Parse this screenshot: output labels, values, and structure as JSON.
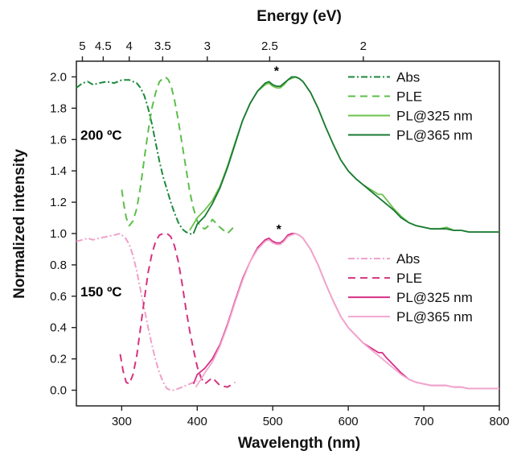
{
  "chart_data": {
    "type": "line",
    "title": "",
    "xlabel": "Wavelength (nm)",
    "ylabel": "Normalized intensity",
    "top_xlabel": "Energy (eV)",
    "xlim": [
      240,
      800
    ],
    "ylim": [
      -0.1,
      2.1
    ],
    "x_ticks": [
      300,
      400,
      500,
      600,
      700,
      800
    ],
    "y_ticks": [
      0.0,
      0.2,
      0.4,
      0.6,
      0.8,
      1.0,
      1.2,
      1.4,
      1.6,
      1.8,
      2.0
    ],
    "top_ticks_ev": [
      5,
      4.5,
      4,
      3.5,
      3,
      2.5,
      2
    ],
    "top_tick_labels": [
      "5",
      "4.5",
      "4",
      "3.5",
      "3",
      "2.5",
      "2"
    ],
    "grid": false,
    "panels": [
      {
        "label": "200 ºC",
        "legend_position": "top-right",
        "peak_marker": {
          "text": "*",
          "x": 505,
          "y": 2.04
        },
        "series": [
          {
            "name": "Abs",
            "style": "dash-dot",
            "color": "#1e8a3c",
            "x": [
              240,
              248,
              255,
              262,
              270,
              280,
              290,
              300,
              310,
              320,
              325,
              330,
              335,
              340,
              345,
              350,
              355,
              360,
              365,
              370,
              375,
              380,
              385,
              390,
              395
            ],
            "y": [
              1.93,
              1.96,
              1.97,
              1.95,
              1.96,
              1.97,
              1.96,
              1.98,
              1.98,
              1.96,
              1.93,
              1.88,
              1.8,
              1.7,
              1.58,
              1.46,
              1.36,
              1.28,
              1.2,
              1.13,
              1.07,
              1.03,
              1.01,
              1.0,
              0.99
            ]
          },
          {
            "name": "PLE",
            "style": "dashed",
            "color": "#5cbf4a",
            "x": [
              300,
              303,
              306,
              310,
              315,
              320,
              325,
              330,
              335,
              340,
              345,
              350,
              355,
              358,
              362,
              366,
              370,
              375,
              380,
              385,
              390,
              395,
              400,
              405,
              410,
              415,
              420,
              430,
              440,
              450
            ],
            "y": [
              1.28,
              1.18,
              1.1,
              1.05,
              1.08,
              1.16,
              1.3,
              1.48,
              1.65,
              1.8,
              1.9,
              1.97,
              1.99,
              2.0,
              1.98,
              1.93,
              1.85,
              1.72,
              1.57,
              1.42,
              1.27,
              1.16,
              1.08,
              1.04,
              1.03,
              1.05,
              1.09,
              1.04,
              1.0,
              1.05
            ]
          },
          {
            "name": "PL@325 nm",
            "style": "solid",
            "color": "#6cc24a",
            "x": [
              390,
              400,
              410,
              420,
              430,
              440,
              450,
              460,
              470,
              480,
              490,
              495,
              500,
              505,
              510,
              515,
              520,
              525,
              530,
              535,
              540,
              550,
              560,
              570,
              580,
              590,
              600,
              610,
              620,
              630,
              640,
              645,
              650,
              660,
              670,
              680,
              690,
              700,
              710,
              720,
              730,
              740,
              750,
              760,
              770,
              780,
              790,
              800
            ],
            "y": [
              1.02,
              1.1,
              1.15,
              1.21,
              1.3,
              1.43,
              1.58,
              1.72,
              1.83,
              1.91,
              1.95,
              1.96,
              1.94,
              1.93,
              1.93,
              1.95,
              1.98,
              1.99,
              2.0,
              1.99,
              1.97,
              1.9,
              1.8,
              1.68,
              1.57,
              1.47,
              1.4,
              1.35,
              1.31,
              1.28,
              1.25,
              1.25,
              1.22,
              1.16,
              1.11,
              1.07,
              1.05,
              1.04,
              1.03,
              1.03,
              1.04,
              1.02,
              1.02,
              1.01,
              1.01,
              1.01,
              1.01,
              1.01
            ]
          },
          {
            "name": "PL@365 nm",
            "style": "solid",
            "color": "#1b7a35",
            "x": [
              395,
              400,
              410,
              420,
              430,
              440,
              450,
              460,
              470,
              480,
              490,
              495,
              500,
              505,
              510,
              515,
              520,
              525,
              530,
              535,
              540,
              550,
              560,
              570,
              580,
              590,
              600,
              610,
              620,
              630,
              640,
              650,
              660,
              670,
              680,
              690,
              700,
              710,
              720,
              730,
              740,
              750,
              760,
              770,
              780,
              790,
              800
            ],
            "y": [
              1.0,
              1.06,
              1.11,
              1.19,
              1.29,
              1.42,
              1.57,
              1.72,
              1.83,
              1.91,
              1.96,
              1.97,
              1.95,
              1.94,
              1.94,
              1.96,
              1.98,
              2.0,
              2.0,
              1.99,
              1.97,
              1.9,
              1.8,
              1.68,
              1.57,
              1.47,
              1.4,
              1.35,
              1.31,
              1.27,
              1.23,
              1.19,
              1.15,
              1.1,
              1.07,
              1.05,
              1.04,
              1.03,
              1.03,
              1.03,
              1.02,
              1.02,
              1.01,
              1.01,
              1.01,
              1.01,
              1.01
            ]
          }
        ]
      },
      {
        "label": "150 ºC",
        "legend_position": "right",
        "peak_marker": {
          "text": "*",
          "x": 508,
          "y": 1.03
        },
        "series": [
          {
            "name": "Abs",
            "style": "dash-dot",
            "color": "#f0a0cb",
            "x": [
              240,
              248,
              255,
              262,
              270,
              280,
              290,
              298,
              305,
              310,
              315,
              320,
              325,
              330,
              335,
              340,
              345,
              350,
              355,
              360,
              365,
              370,
              375,
              380,
              385,
              390,
              395,
              400
            ],
            "y": [
              0.95,
              0.96,
              0.97,
              0.96,
              0.97,
              0.98,
              0.99,
              1.0,
              0.97,
              0.93,
              0.86,
              0.76,
              0.64,
              0.52,
              0.4,
              0.29,
              0.19,
              0.11,
              0.05,
              0.01,
              0.0,
              0.0,
              0.01,
              0.02,
              0.03,
              0.04,
              0.05,
              0.06
            ]
          },
          {
            "name": "PLE",
            "style": "dashed",
            "color": "#d6337f",
            "x": [
              298,
              302,
              306,
              310,
              315,
              320,
              325,
              330,
              335,
              340,
              345,
              350,
              355,
              360,
              365,
              370,
              375,
              380,
              385,
              390,
              395,
              400,
              405,
              410,
              415,
              420,
              430,
              440,
              450
            ],
            "y": [
              0.23,
              0.12,
              0.05,
              0.04,
              0.1,
              0.22,
              0.4,
              0.58,
              0.75,
              0.87,
              0.95,
              0.99,
              1.0,
              1.0,
              0.98,
              0.92,
              0.82,
              0.68,
              0.52,
              0.38,
              0.26,
              0.15,
              0.08,
              0.04,
              0.06,
              0.08,
              0.03,
              0.02,
              0.05
            ]
          },
          {
            "name": "PL@325 nm",
            "style": "solid",
            "color": "#d62f86",
            "x": [
              395,
              400,
              410,
              420,
              430,
              440,
              450,
              460,
              470,
              480,
              490,
              495,
              500,
              505,
              510,
              515,
              520,
              525,
              530,
              535,
              540,
              550,
              560,
              570,
              580,
              590,
              600,
              610,
              620,
              630,
              640,
              645,
              650,
              660,
              670,
              680,
              690,
              700,
              710,
              720,
              730,
              740,
              750,
              760,
              770,
              780,
              790,
              800
            ],
            "y": [
              0.04,
              0.1,
              0.14,
              0.2,
              0.29,
              0.42,
              0.57,
              0.71,
              0.82,
              0.91,
              0.96,
              0.97,
              0.95,
              0.94,
              0.94,
              0.96,
              0.99,
              1.0,
              1.0,
              0.99,
              0.97,
              0.9,
              0.8,
              0.68,
              0.57,
              0.47,
              0.4,
              0.35,
              0.3,
              0.27,
              0.24,
              0.24,
              0.21,
              0.16,
              0.11,
              0.07,
              0.05,
              0.04,
              0.03,
              0.03,
              0.03,
              0.02,
              0.02,
              0.01,
              0.01,
              0.01,
              0.01,
              0.01
            ]
          },
          {
            "name": "PL@365 nm",
            "style": "solid",
            "color": "#f2a8cf",
            "x": [
              398,
              405,
              410,
              420,
              430,
              440,
              450,
              460,
              470,
              480,
              490,
              495,
              500,
              505,
              510,
              515,
              520,
              525,
              530,
              535,
              540,
              550,
              560,
              570,
              580,
              590,
              600,
              610,
              620,
              630,
              640,
              650,
              660,
              670,
              680,
              690,
              700,
              710,
              720,
              730,
              740,
              750,
              760,
              770,
              780,
              790,
              800
            ],
            "y": [
              0.02,
              0.07,
              0.11,
              0.18,
              0.28,
              0.41,
              0.56,
              0.7,
              0.82,
              0.9,
              0.95,
              0.96,
              0.94,
              0.93,
              0.93,
              0.95,
              0.98,
              0.99,
              1.0,
              0.99,
              0.97,
              0.9,
              0.8,
              0.68,
              0.57,
              0.47,
              0.4,
              0.35,
              0.3,
              0.26,
              0.22,
              0.18,
              0.14,
              0.1,
              0.07,
              0.05,
              0.04,
              0.03,
              0.03,
              0.03,
              0.02,
              0.02,
              0.01,
              0.01,
              0.01,
              0.01,
              0.01
            ]
          }
        ]
      }
    ]
  }
}
